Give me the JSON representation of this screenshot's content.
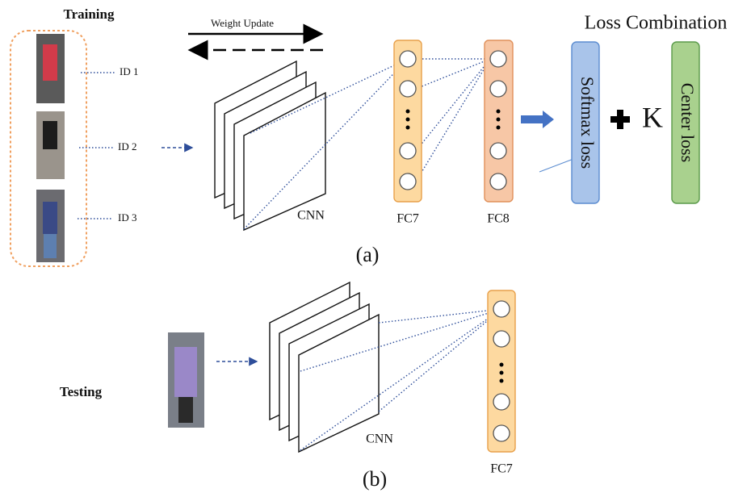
{
  "training": {
    "title": "Training",
    "ids": [
      "ID 1",
      "ID 2",
      "ID 3"
    ]
  },
  "weight_update": "Weight Update",
  "panel_a": {
    "cnn": "CNN",
    "fc7": "FC7",
    "fc8": "FC8",
    "loss_title": "Loss Combination",
    "softmax": "Softmax loss",
    "k": "K",
    "center": "Center loss",
    "caption": "(a)"
  },
  "panel_b": {
    "title": "Testing",
    "cnn": "CNN",
    "fc7": "FC7",
    "caption": "(b)"
  }
}
